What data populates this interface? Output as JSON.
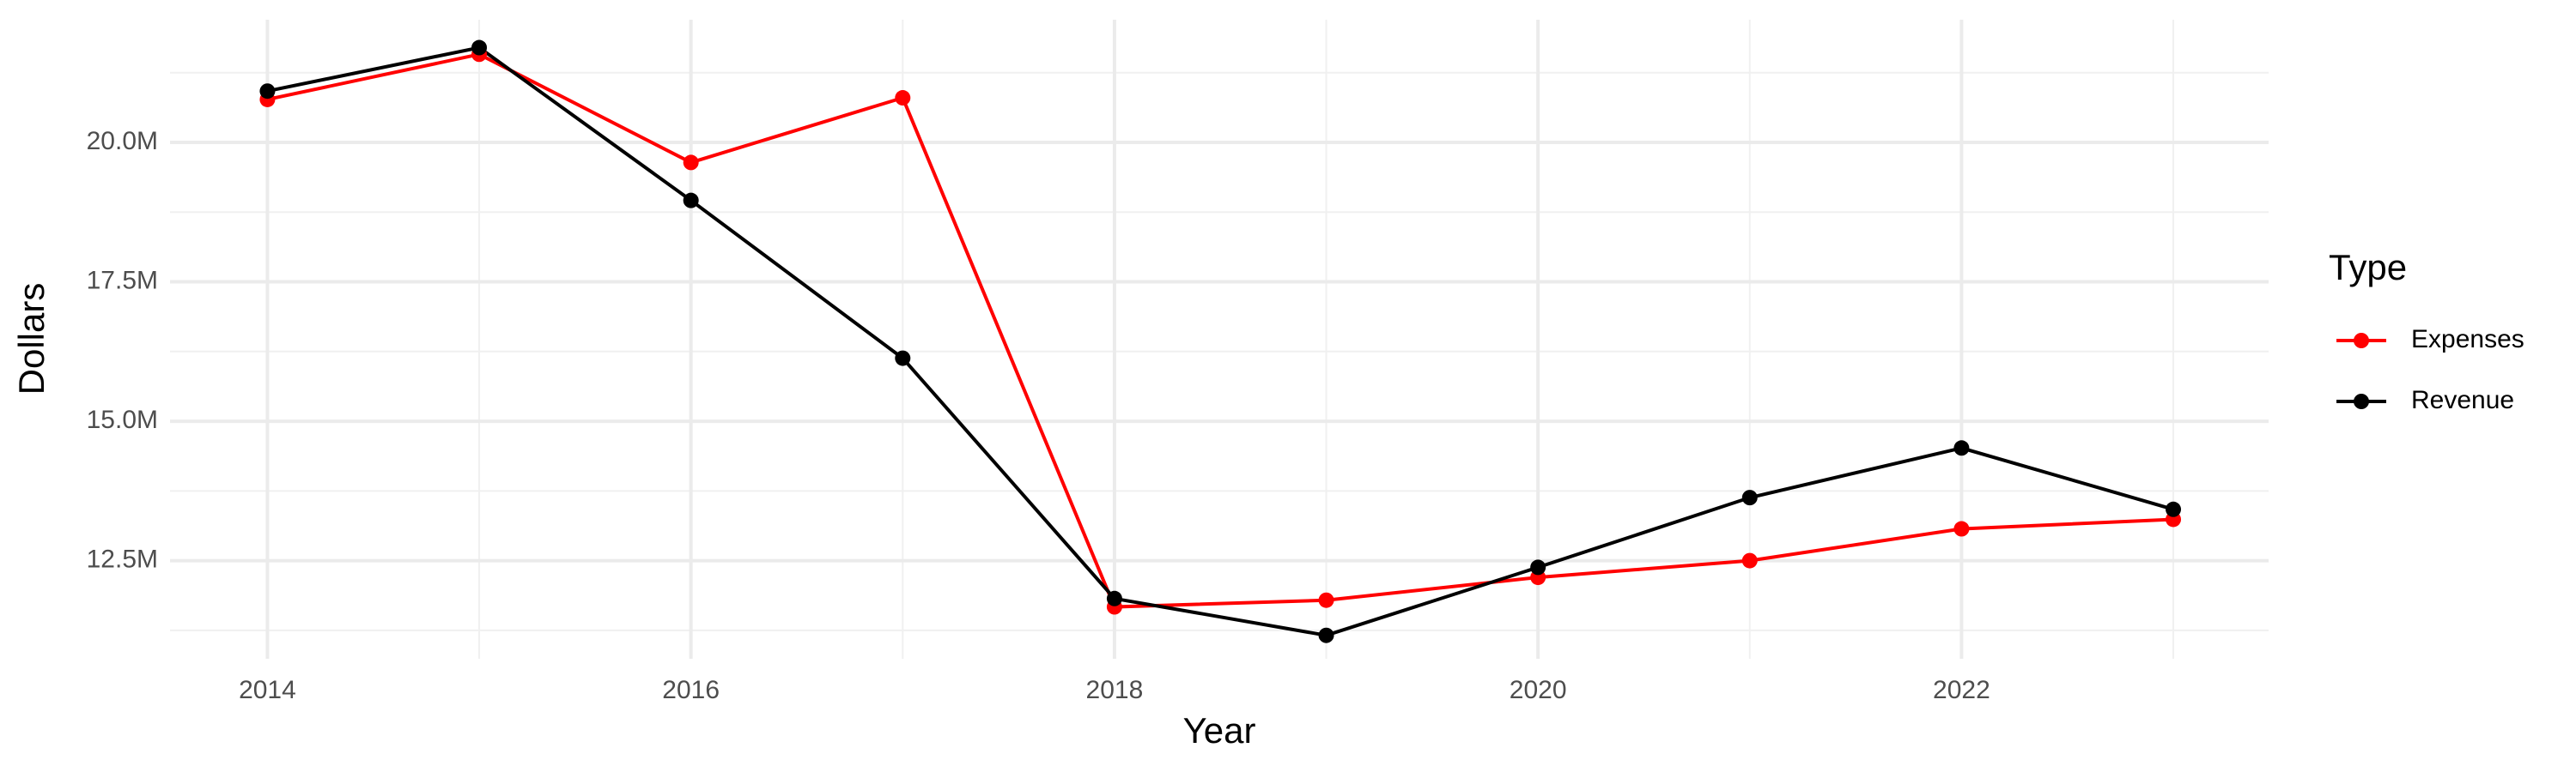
{
  "chart_data": {
    "type": "line",
    "x_label": "Year",
    "y_label": "Dollars",
    "legend_title": "Type",
    "x": [
      2014,
      2015,
      2016,
      2017,
      2018,
      2019,
      2020,
      2021,
      2022,
      2023
    ],
    "series": [
      {
        "name": "Expenses",
        "color": "#ff0000",
        "values": [
          20770000,
          21580000,
          19640000,
          20800000,
          11670000,
          11790000,
          12200000,
          12500000,
          13070000,
          13240000
        ]
      },
      {
        "name": "Revenue",
        "color": "#000000",
        "values": [
          20920000,
          21700000,
          18960000,
          16130000,
          11820000,
          11160000,
          12380000,
          13630000,
          14520000,
          13420000
        ]
      }
    ],
    "xlim": [
      2013.54,
      2023.45
    ],
    "xticks": [
      2014,
      2016,
      2018,
      2020,
      2022
    ],
    "ylim": [
      10740000,
      22200000
    ],
    "yticks": [
      {
        "value": 12500000,
        "label": "12.5M"
      },
      {
        "value": 15000000,
        "label": "15.0M"
      },
      {
        "value": 17500000,
        "label": "17.5M"
      },
      {
        "value": 20000000,
        "label": "20.0M"
      }
    ],
    "grid": true,
    "legend": "right"
  }
}
